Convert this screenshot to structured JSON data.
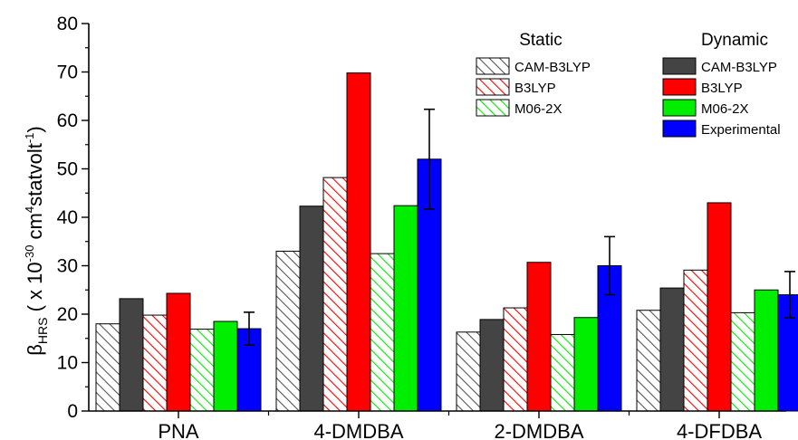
{
  "chart_data": {
    "type": "bar",
    "categories": [
      "PNA",
      "4-DMDBA",
      "2-DMDBA",
      "4-DFDBA"
    ],
    "ylabel_main": "β",
    "ylabel_sub": "HRS",
    "ylabel_rest_a": " ( x 10",
    "ylabel_exp_a": "-30",
    "ylabel_rest_b": " cm",
    "ylabel_exp_b": "4",
    "ylabel_rest_c": "statvolt",
    "ylabel_exp_c": "-1",
    "ylabel_rest_d": ")",
    "ylim": [
      0,
      80
    ],
    "yticks": [
      0,
      10,
      20,
      30,
      40,
      50,
      60,
      70,
      80
    ],
    "grid": false,
    "legend_groups": [
      {
        "title": "Static",
        "entries": [
          0,
          2,
          4
        ]
      },
      {
        "title": "Dynamic",
        "entries": [
          1,
          3,
          5,
          6
        ]
      }
    ],
    "series": [
      {
        "name": "CAM-B3LYP",
        "group": "Static",
        "color": "#555555",
        "pattern": "hatch",
        "values": [
          18.0,
          33.0,
          16.3,
          20.8
        ]
      },
      {
        "name": "CAM-B3LYP",
        "group": "Dynamic",
        "color": "#444444",
        "pattern": "solid",
        "values": [
          23.2,
          42.3,
          18.9,
          25.4
        ]
      },
      {
        "name": "B3LYP",
        "group": "Static",
        "color": "#ff0000",
        "pattern": "hatch",
        "values": [
          19.8,
          48.2,
          21.3,
          29.1
        ]
      },
      {
        "name": "B3LYP",
        "group": "Dynamic",
        "color": "#ff0000",
        "pattern": "solid",
        "values": [
          24.3,
          69.8,
          30.7,
          43.0
        ]
      },
      {
        "name": "M06-2X",
        "group": "Static",
        "color": "#00ee00",
        "pattern": "hatch",
        "values": [
          16.9,
          32.5,
          15.8,
          20.3
        ]
      },
      {
        "name": "M06-2X",
        "group": "Dynamic",
        "color": "#00ee00",
        "pattern": "solid",
        "values": [
          18.5,
          42.4,
          19.3,
          25.0
        ]
      },
      {
        "name": "Experimental",
        "group": "Dynamic",
        "color": "#0000ff",
        "pattern": "solid",
        "values": [
          17.0,
          52.0,
          30.0,
          24.0
        ],
        "errors": [
          3.4,
          10.3,
          6.0,
          4.8
        ]
      }
    ]
  }
}
